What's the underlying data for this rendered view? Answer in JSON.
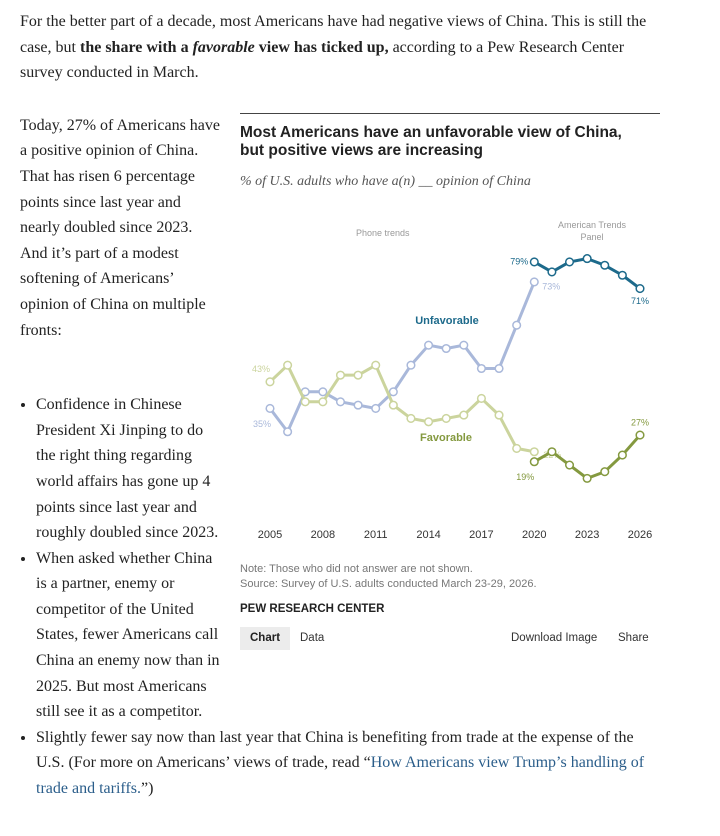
{
  "intro": {
    "text_1": "For the better part of a decade, most Americans have had negative views of China. This is still the case, but ",
    "bold_1": "the share with a ",
    "italic": "favorable",
    "bold_2": " view has ticked up,",
    "text_2": " according to a Pew Research Center survey conducted in March."
  },
  "paragraph": "Today, 27% of Americans have a positive opinion of China. That has risen 6 percentage points since last year and nearly doubled since 2023. And it’s part of a modest softening of Americans’ opinion of China on multiple fronts:",
  "bullets": [
    {
      "text": "Confidence in Chinese President Xi Jinping to do the right thing regarding world affairs has gone up 4 points since last year and roughly doubled since 2023."
    },
    {
      "text": "When asked whether China is a partner, enemy or competitor of the United States, fewer Americans call China an enemy now than in 2025. But most Americans still see it as a competitor."
    },
    {
      "text": "Slightly fewer say now than last year that China is benefiting from trade at the expense of the U.S. (For more on Americans’ views of trade, read “",
      "link": "How Americans view Trump’s handling of trade and tariffs.",
      "after": "”)"
    }
  ],
  "chart_data": {
    "type": "line",
    "title": "Most Americans have an unfavorable view of China, but positive views are increasing",
    "subtitle": "% of U.S. adults who have a(n) __ opinion of China",
    "annotations": [
      "Phone trends",
      "American Trends Panel"
    ],
    "x": [
      2005,
      2006,
      2007,
      2008,
      2009,
      2010,
      2011,
      2012,
      2013,
      2014,
      2015,
      2016,
      2017,
      2018,
      2019,
      2020,
      null,
      2020,
      2021,
      2022,
      2023,
      2024,
      2025,
      2026
    ],
    "series": [
      {
        "name": "Unfavorable",
        "colors": [
          "#a9b8da",
          "#1d6a8b"
        ],
        "values": [
          35,
          28,
          40,
          40,
          37,
          36,
          35,
          40,
          48,
          54,
          53,
          54,
          47,
          47,
          60,
          73,
          null,
          79,
          76,
          79,
          80,
          78,
          75,
          71
        ],
        "value_labels": [
          "35%",
          null,
          null,
          null,
          null,
          null,
          null,
          null,
          null,
          null,
          null,
          null,
          null,
          null,
          null,
          "73%",
          null,
          "79%",
          null,
          null,
          null,
          null,
          null,
          "71%"
        ]
      },
      {
        "name": "Favorable",
        "colors": [
          "#cbd49d",
          "#84993f"
        ],
        "values": [
          43,
          48,
          37,
          37,
          45,
          45,
          48,
          36,
          32,
          31,
          32,
          33,
          38,
          33,
          23,
          22,
          null,
          19,
          22,
          18,
          14,
          16,
          21,
          27
        ],
        "value_labels": [
          "43%",
          null,
          null,
          null,
          null,
          null,
          null,
          null,
          null,
          null,
          null,
          null,
          null,
          null,
          null,
          "22%",
          null,
          "19%",
          null,
          null,
          null,
          null,
          null,
          "27%"
        ]
      }
    ],
    "xlim": [
      2005,
      2026
    ],
    "xticks": [
      2005,
      2008,
      2011,
      2014,
      2017,
      2020,
      2023,
      2026
    ],
    "ylim": [
      0,
      100
    ],
    "grid": false,
    "note": "Note: Those who did not answer are not shown.",
    "source": "Source: Survey of U.S. adults conducted March 23-29, 2026.",
    "credit": "PEW RESEARCH CENTER"
  },
  "chart_tools": {
    "tabs": [
      "Chart",
      "Data"
    ],
    "actions": [
      "Download Image",
      "Share"
    ]
  }
}
